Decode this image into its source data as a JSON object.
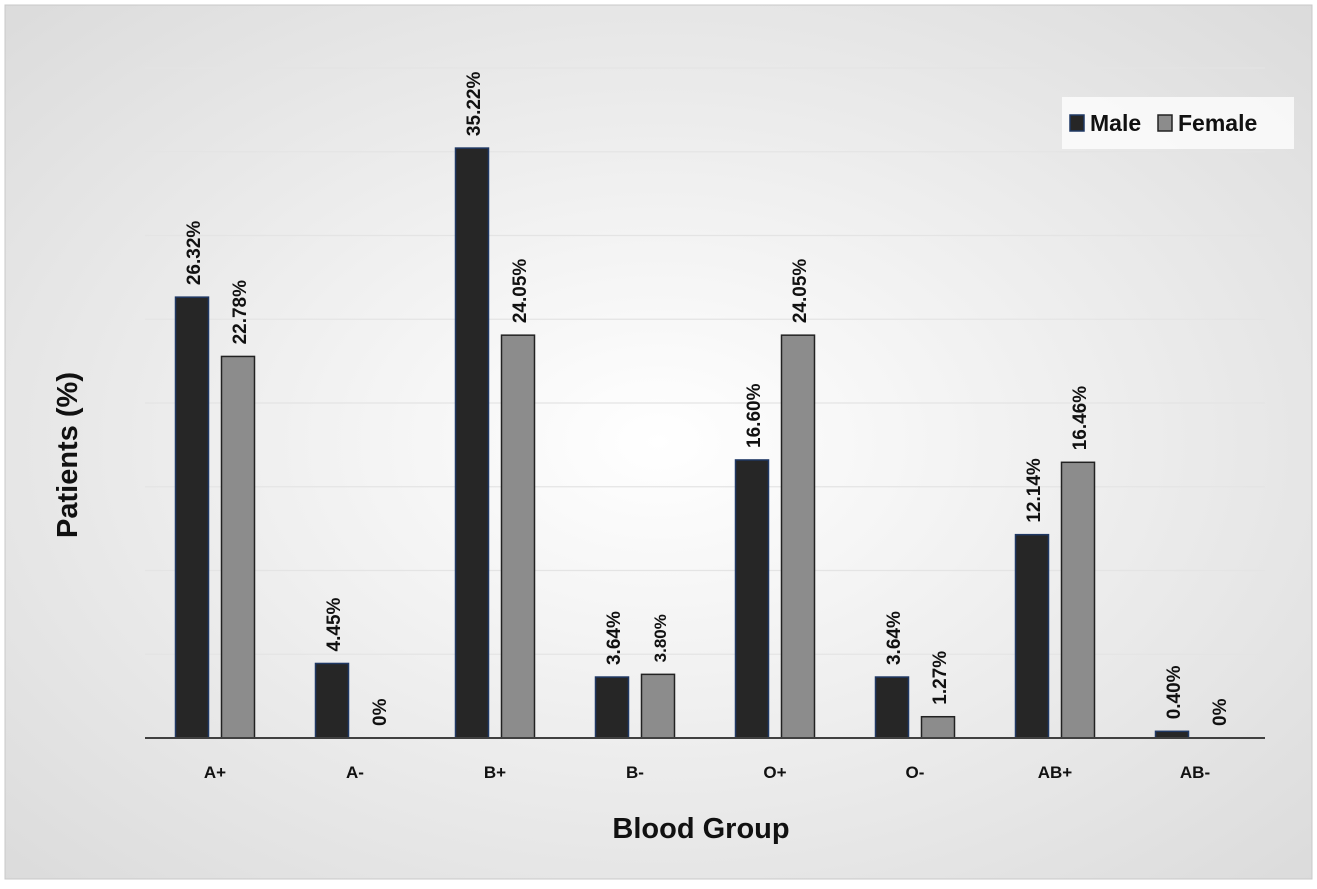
{
  "chart_data": {
    "type": "bar",
    "title": "",
    "xlabel": "Blood Group",
    "ylabel": "Patients (%)",
    "categories": [
      "A+",
      "A-",
      "B+",
      "B-",
      "O+",
      "O-",
      "AB+",
      "AB-"
    ],
    "series": [
      {
        "name": "Male",
        "color": "#262626",
        "values": [
          26.32,
          4.45,
          35.22,
          3.64,
          16.6,
          3.64,
          12.14,
          0.4
        ],
        "labels": [
          "26.32%",
          "4.45%",
          "35.22%",
          "3.64%",
          "16.60%",
          "3.64%",
          "12.14%",
          "0.40%"
        ]
      },
      {
        "name": "Female",
        "color": "#8c8c8c",
        "values": [
          22.78,
          0,
          24.05,
          3.8,
          24.05,
          1.27,
          16.46,
          0
        ],
        "labels": [
          "22.78%",
          "0%",
          "24.05%",
          "3.80%",
          "24.05%",
          "1.27%",
          "16.46%",
          "0%"
        ]
      }
    ],
    "ylim": [
      0,
      40
    ],
    "grid": true,
    "legend": "top-right",
    "colors": {
      "background_edge": "#dcdcdc",
      "background_center": "#ffffff",
      "gridline": "#e4e4e4",
      "axis": "#404040",
      "bar_outline_male": "#1f3864",
      "bar_outline_female": "#222222"
    }
  }
}
